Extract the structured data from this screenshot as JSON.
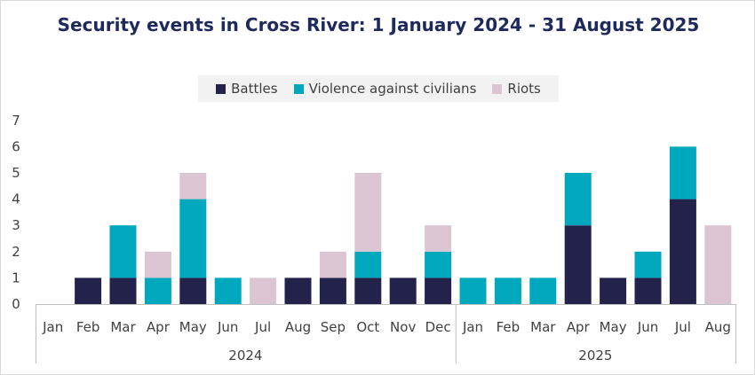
{
  "chart_data": {
    "type": "bar",
    "stacked": true,
    "title": "Security events in Cross River: 1 January 2024 - 31 August 2025",
    "categories": [
      "Jan",
      "Feb",
      "Mar",
      "Apr",
      "May",
      "Jun",
      "Jul",
      "Aug",
      "Sep",
      "Oct",
      "Nov",
      "Dec",
      "Jan",
      "Feb",
      "Mar",
      "Apr",
      "May",
      "Jun",
      "Jul",
      "Aug"
    ],
    "year_groups": [
      {
        "label": "2024",
        "count": 12
      },
      {
        "label": "2025",
        "count": 8
      }
    ],
    "series": [
      {
        "name": "Battles",
        "color": "#22224a",
        "values": [
          0,
          1,
          1,
          0,
          1,
          0,
          0,
          1,
          1,
          1,
          1,
          1,
          0,
          0,
          0,
          3,
          1,
          1,
          4,
          0
        ]
      },
      {
        "name": "Violence against civilians",
        "color": "#00a8bd",
        "values": [
          0,
          0,
          2,
          1,
          3,
          1,
          0,
          0,
          0,
          1,
          0,
          1,
          1,
          1,
          1,
          2,
          0,
          1,
          2,
          0
        ]
      },
      {
        "name": "Riots",
        "color": "#dcc5d3",
        "values": [
          0,
          0,
          0,
          1,
          1,
          0,
          1,
          0,
          1,
          3,
          0,
          1,
          0,
          0,
          0,
          0,
          0,
          0,
          0,
          3
        ]
      }
    ],
    "yticks": [
      0,
      1,
      2,
      3,
      4,
      5,
      6,
      7
    ],
    "ylim": [
      0,
      7
    ],
    "legend_position": "top",
    "grid": false
  }
}
